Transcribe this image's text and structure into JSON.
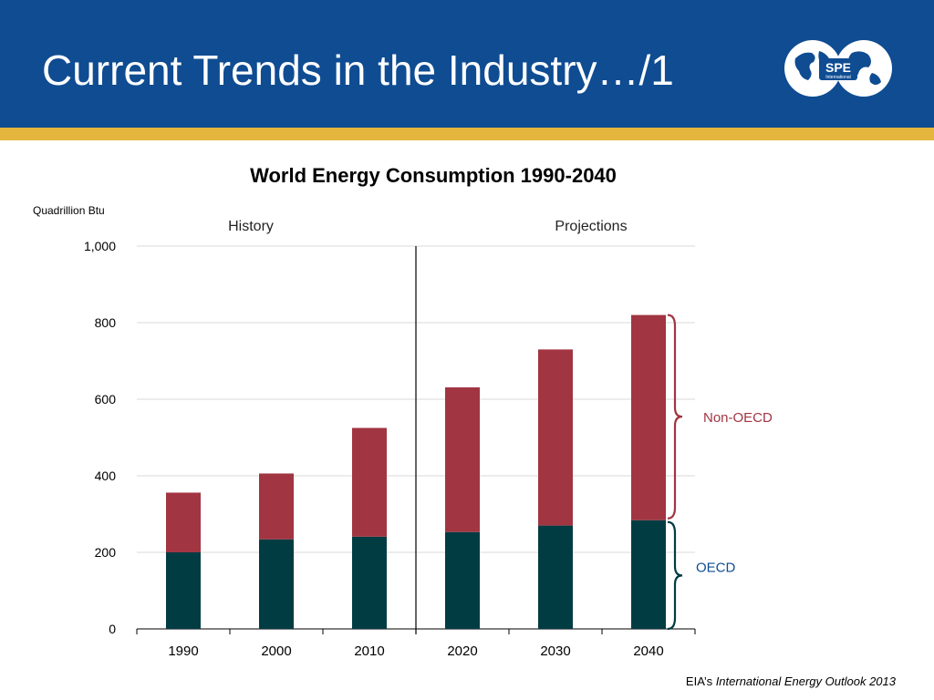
{
  "slide": {
    "title": "Current Trends in the Industry…/1",
    "logo_text": "SPE",
    "logo_subtext": "International",
    "source_prefix": "EIA’s ",
    "source_title": "International Energy Outlook 2013"
  },
  "colors": {
    "header": "#0f4c92",
    "stripe": "#e4b63d",
    "oecd": "#023c43",
    "non_oecd": "#a13542",
    "oecd_label": "#0f4c92",
    "non_oecd_label": "#a13542"
  },
  "chart_data": {
    "type": "bar",
    "stacked": true,
    "title": "World Energy Consumption 1990-2040",
    "ylabel": "Quadrillion Btu",
    "ylim": [
      0,
      1000
    ],
    "yticks": [
      0,
      200,
      400,
      600,
      800,
      1000
    ],
    "ytick_labels": [
      "0",
      "200",
      "400",
      "600",
      "800",
      "1,000"
    ],
    "categories": [
      "1990",
      "2000",
      "2010",
      "2020",
      "2030",
      "2040"
    ],
    "series": [
      {
        "name": "OECD",
        "values": [
          200,
          234,
          241,
          253,
          270,
          284
        ]
      },
      {
        "name": "Non-OECD",
        "values": [
          156,
          172,
          284,
          378,
          460,
          536
        ]
      }
    ],
    "sections": [
      {
        "label": "History",
        "categories": [
          "1990",
          "2000",
          "2010"
        ]
      },
      {
        "label": "Projections",
        "categories": [
          "2020",
          "2030",
          "2040"
        ]
      }
    ],
    "grid": true,
    "legend": "right (brace labels)"
  }
}
